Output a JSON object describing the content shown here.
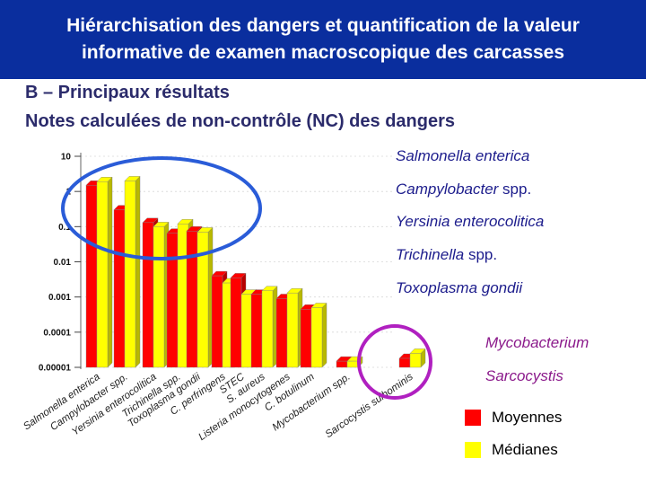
{
  "header": {
    "title_line1": "Hiérarchisation des dangers et quantification de la valeur",
    "title_line2": "informative de examen macroscopique des carcasses"
  },
  "section": {
    "subtitle": "B – Principaux résultats",
    "subtitle2": "Notes calculées de non-contrôle (NC) des dangers"
  },
  "highlight_labels": {
    "blue": [
      {
        "italic": "Salmonella enterica",
        "suffix": ""
      },
      {
        "italic": "Campylobacter",
        "suffix": " spp."
      },
      {
        "italic": "Yersinia enterocolitica",
        "suffix": ""
      },
      {
        "italic": "Trichinella",
        "suffix": " spp."
      },
      {
        "italic": "Toxoplasma gondii",
        "suffix": ""
      }
    ],
    "purple": [
      {
        "italic": "Mycobacterium",
        "suffix": ""
      },
      {
        "italic": "Sarcocystis",
        "suffix": ""
      }
    ]
  },
  "legend": [
    {
      "label": "Moyennes",
      "color": "#ff0000"
    },
    {
      "label": "Médianes",
      "color": "#ffff00"
    }
  ],
  "colors": {
    "header_bg": "#0a2e9e",
    "mean": "#ff0000",
    "median": "#ffff00",
    "blue_ellipse": "#2a5cd8",
    "purple_ellipse": "#b020c0"
  },
  "chart_data": {
    "type": "bar",
    "y_scale": "log",
    "ylim": [
      1e-05,
      10
    ],
    "y_ticks": [
      "10",
      "1",
      "0.1",
      "0.01",
      "0.001",
      "0.0001",
      "0.00001"
    ],
    "categories": [
      "Salmonella enterica",
      "Campylobacter spp.",
      "Yersinia enterocolitica",
      "Trichinella spp.",
      "Toxoplasma gondii",
      "C. perfringens",
      "STEC",
      "S. aureus",
      "Listeria monocytogenes",
      "C. botulinum",
      "Mycobacterium spp.",
      "Sarcocystis suihominis"
    ],
    "series": [
      {
        "name": "Moyennes",
        "values": [
          1.5,
          0.3,
          0.13,
          0.065,
          0.075,
          0.004,
          0.0035,
          0.0012,
          0.0009,
          0.00045,
          1.5e-05,
          1.8e-05
        ]
      },
      {
        "name": "Médianes",
        "values": [
          1.9,
          2.0,
          0.1,
          0.12,
          0.07,
          0.0025,
          0.0012,
          0.0015,
          0.0013,
          0.0005,
          1.5e-05,
          2.5e-05
        ]
      }
    ]
  }
}
